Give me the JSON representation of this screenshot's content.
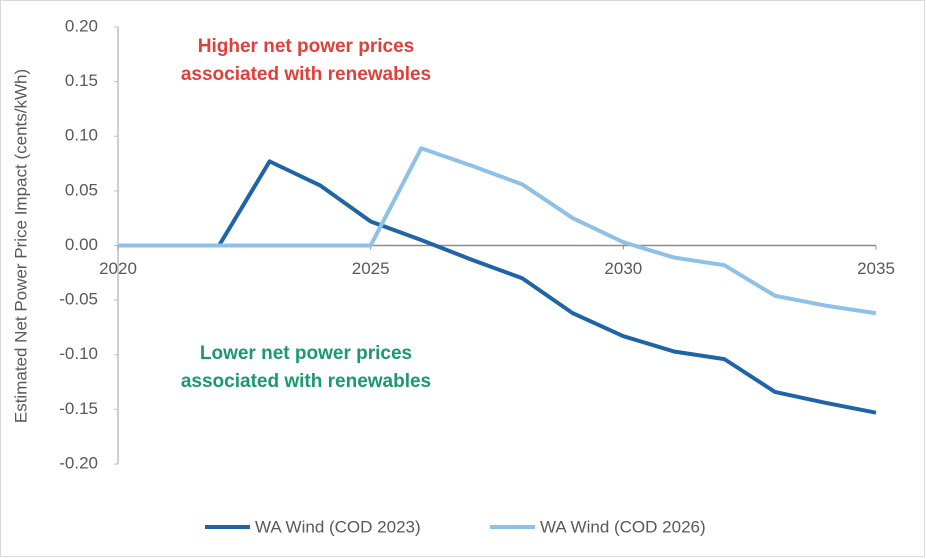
{
  "chart_data": {
    "type": "line",
    "y_label": "Estimated Net Power Price Impact (cents/kWh)",
    "x": [
      2020,
      2021,
      2022,
      2023,
      2024,
      2025,
      2026,
      2027,
      2028,
      2029,
      2030,
      2031,
      2032,
      2033,
      2034,
      2035
    ],
    "series": [
      {
        "name": "WA Wind (COD 2023)",
        "color": "#1f65a6",
        "values": [
          0,
          0,
          0,
          0.077,
          0.055,
          0.022,
          0.005,
          -0.013,
          -0.03,
          -0.062,
          -0.083,
          -0.097,
          -0.104,
          -0.134,
          -0.144,
          -0.153
        ]
      },
      {
        "name": "WA Wind (COD 2026)",
        "color": "#8fc0e8",
        "values": [
          0,
          0,
          0,
          0,
          0,
          0,
          0.089,
          0.073,
          0.056,
          0.025,
          0.003,
          -0.011,
          -0.018,
          -0.046,
          -0.055,
          -0.062
        ]
      }
    ],
    "xlim": [
      2020,
      2035
    ],
    "xticks": [
      2020,
      2025,
      2030,
      2035
    ],
    "ylim": [
      -0.2,
      0.2
    ],
    "yticks": [
      {
        "value": -0.2,
        "label": "-0.20"
      },
      {
        "value": -0.15,
        "label": "-0.15"
      },
      {
        "value": -0.1,
        "label": "-0.10"
      },
      {
        "value": -0.05,
        "label": "-0.05"
      },
      {
        "value": 0,
        "label": "0.00"
      },
      {
        "value": 0.05,
        "label": "0.05"
      },
      {
        "value": 0.1,
        "label": "0.10"
      },
      {
        "value": 0.15,
        "label": "0.15"
      },
      {
        "value": 0.2,
        "label": "0.20"
      }
    ],
    "annotations": [
      {
        "lines": [
          "Higher net power prices",
          "associated with renewables"
        ],
        "color": "#e0403a"
      },
      {
        "lines": [
          "Lower net power prices",
          "associated with renewables"
        ],
        "color": "#1a9870"
      }
    ],
    "legend": "bottom",
    "grid": false
  }
}
